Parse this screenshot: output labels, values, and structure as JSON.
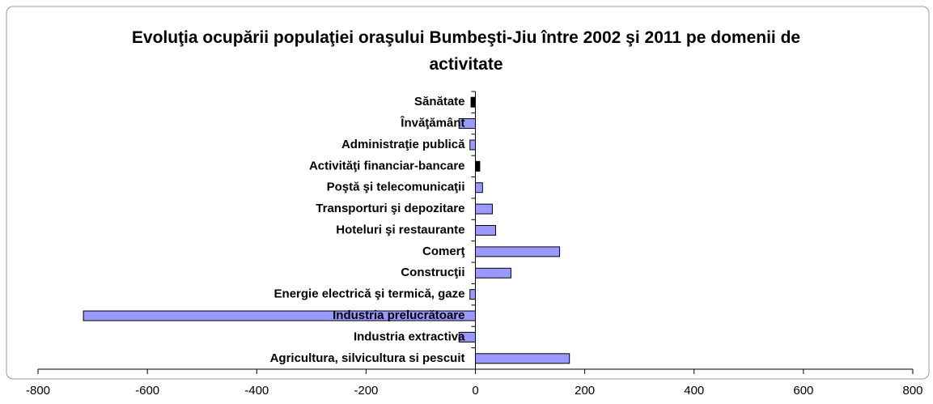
{
  "chart_data": {
    "type": "barh",
    "title": "Evoluţia ocupării populaţiei oraşului Bumbeşti-Jiu între 2002 şi 2011 pe domenii de activitate",
    "categories": [
      "Sănătate",
      "Învăţământ",
      "Administraţie publică",
      "Activităţi financiar-bancare",
      "Poştă şi telecomunicaţii",
      "Transporturi şi depozitare",
      "Hoteluri şi restaurante",
      "Comerţ",
      "Construcţii",
      "Energie electrică şi termică, gaze",
      "Industria prelucrătoare",
      "Industria extractiva",
      "Agricultura, silvicultura si pescuit"
    ],
    "values": [
      -8,
      -30,
      -10,
      8,
      13,
      31,
      37,
      154,
      65,
      -10,
      -717,
      -30,
      172
    ],
    "colors": [
      "#000000",
      "#9999ff",
      "#9999ff",
      "#000000",
      "#9999ff",
      "#9999ff",
      "#9999ff",
      "#9999ff",
      "#9999ff",
      "#9999ff",
      "#9999ff",
      "#9999ff",
      "#9999ff"
    ],
    "xlim": [
      -800,
      800
    ],
    "xticks": [
      -800,
      -600,
      -400,
      -200,
      0,
      200,
      400,
      600,
      800
    ],
    "grid": false
  }
}
